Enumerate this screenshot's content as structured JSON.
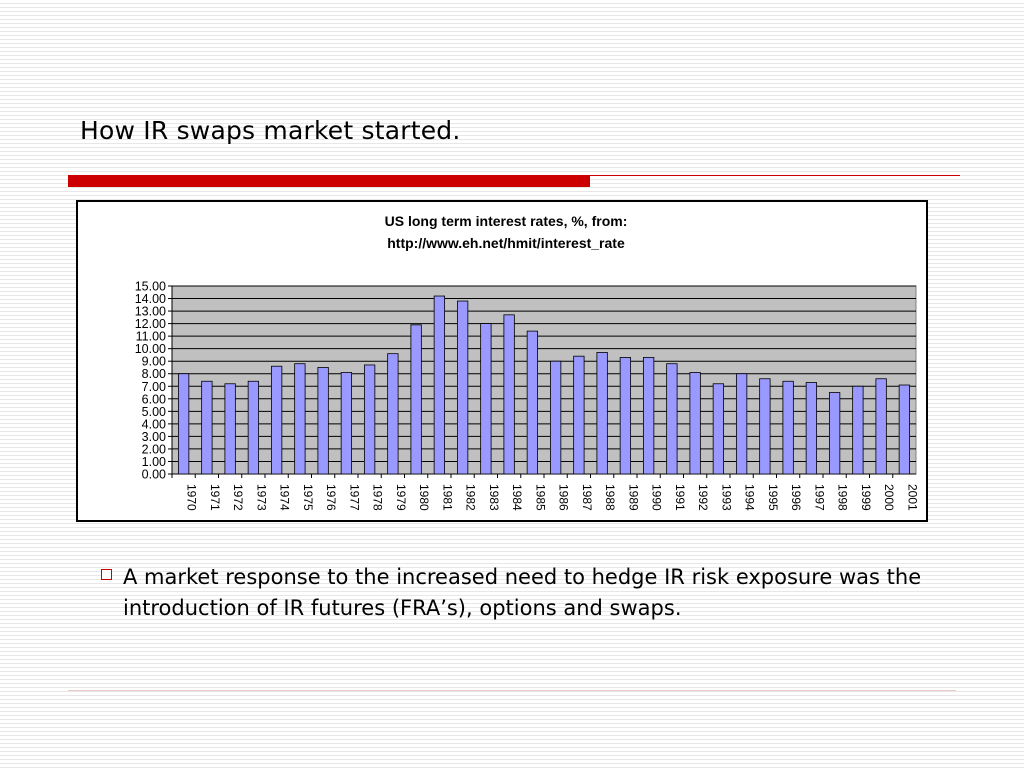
{
  "slide": {
    "title": "How IR swaps market started.",
    "bullet": "A market response to the increased need to hedge IR risk exposure was the introduction of IR futures (FRA’s), options and swaps."
  },
  "colors": {
    "accent": "#cc0000",
    "bar_fill": "#9999ff",
    "plot_bg": "#c0c0c0"
  },
  "chart_data": {
    "type": "bar",
    "title_line1": "US long term interest rates, %, from:",
    "title_line2": "http://www.eh.net/hmit/interest_rate",
    "categories": [
      "1970",
      "1971",
      "1972",
      "1973",
      "1974",
      "1975",
      "1976",
      "1977",
      "1978",
      "1979",
      "1980",
      "1981",
      "1982",
      "1983",
      "1984",
      "1985",
      "1986",
      "1987",
      "1988",
      "1989",
      "1990",
      "1991",
      "1992",
      "1993",
      "1994",
      "1995",
      "1996",
      "1997",
      "1998",
      "1999",
      "2000",
      "2001"
    ],
    "values": [
      8.0,
      7.4,
      7.2,
      7.4,
      8.6,
      8.8,
      8.5,
      8.1,
      8.7,
      9.6,
      11.9,
      14.2,
      13.8,
      12.0,
      12.7,
      11.4,
      9.0,
      9.4,
      9.7,
      9.3,
      9.3,
      8.8,
      8.1,
      7.2,
      8.0,
      7.6,
      7.4,
      7.3,
      6.5,
      7.0,
      7.6,
      7.1
    ],
    "ylim": [
      0,
      15
    ],
    "yticks": [
      "0.00",
      "1.00",
      "2.00",
      "3.00",
      "4.00",
      "5.00",
      "6.00",
      "7.00",
      "8.00",
      "9.00",
      "10.00",
      "11.00",
      "12.00",
      "13.00",
      "14.00",
      "15.00"
    ],
    "grid": true,
    "legend": "none"
  }
}
